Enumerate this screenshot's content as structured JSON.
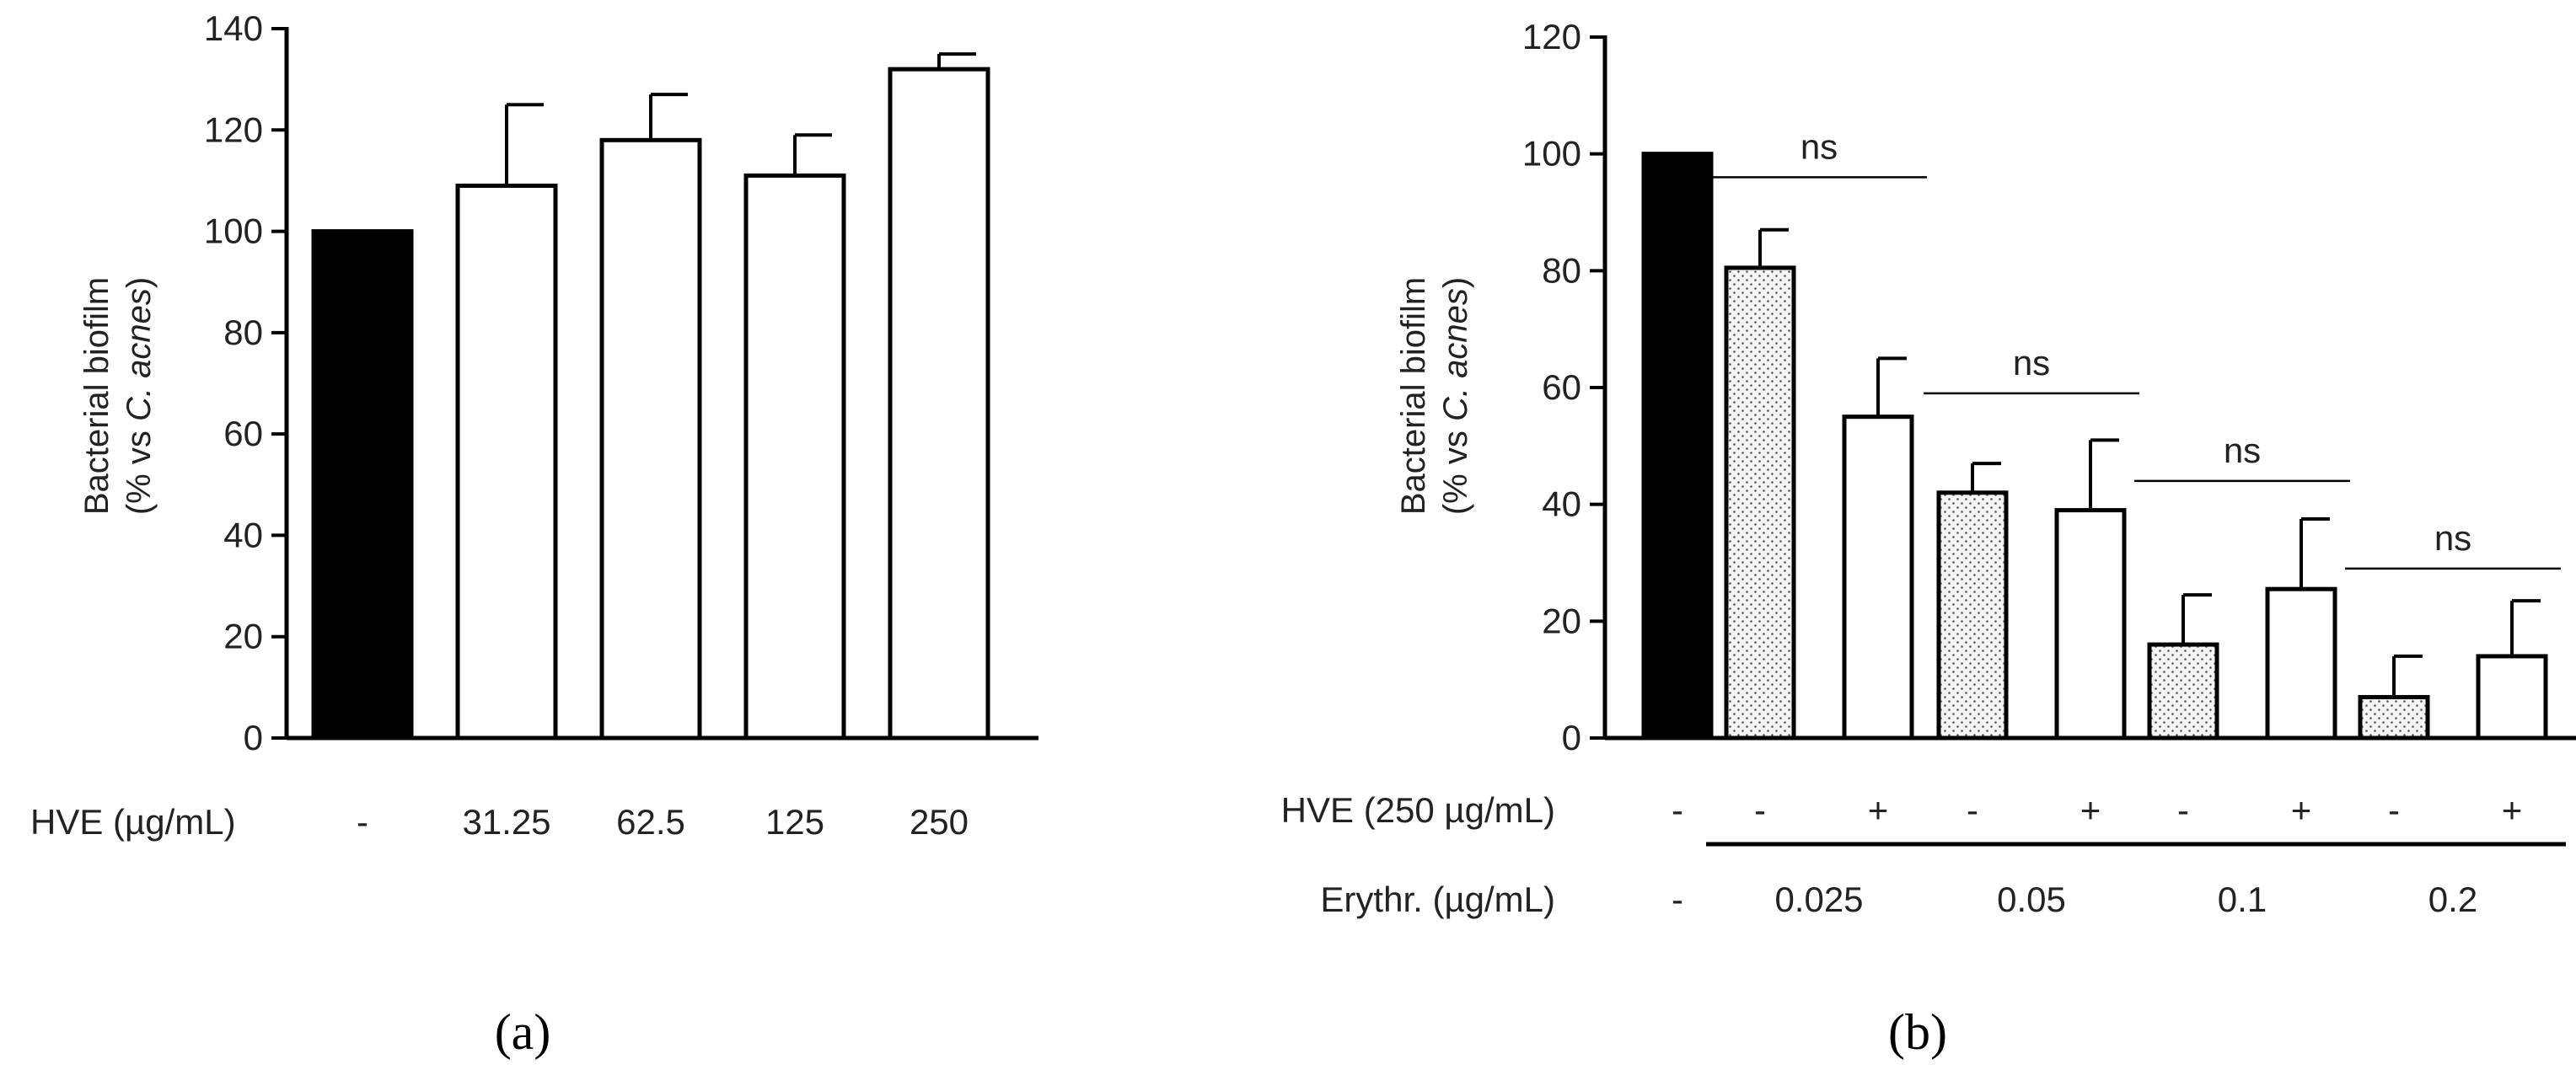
{
  "colors": {
    "control": "#000000",
    "hve_only": "#ffffff",
    "erythromycin_only": "#ececec",
    "axis": "#000000"
  },
  "panels": [
    {
      "panel_label": "(a)",
      "ylabel_line1": "Bacterial biofilm",
      "ylabel_line2_prefix": "(% vs ",
      "ylabel_line2_italic": "C. acnes",
      "ylabel_line2_suffix": ")",
      "row1_label": "HVE (µg/mL)"
    },
    {
      "panel_label": "(b)",
      "ylabel_line1": "Bacterial biofilm",
      "ylabel_line2_prefix": "(% vs ",
      "ylabel_line2_italic": "C. acnes",
      "ylabel_line2_suffix": ")",
      "row1_label": "HVE (250 µg/mL)",
      "row2_label": "Erythr. (µg/mL)"
    }
  ],
  "chart_data": [
    {
      "type": "bar",
      "title": "",
      "xlabel": "HVE (µg/mL)",
      "ylabel": "Bacterial biofilm (% vs C. acnes)",
      "ylim": [
        0,
        140
      ],
      "yticks": [
        0,
        20,
        40,
        60,
        80,
        100,
        120,
        140
      ],
      "categories": [
        "-",
        "31.25",
        "62.5",
        "125",
        "250"
      ],
      "values": [
        100,
        109,
        118,
        111,
        132
      ],
      "errors": [
        0,
        16,
        9,
        8,
        3
      ],
      "fills": [
        "control",
        "hve_only",
        "hve_only",
        "hve_only",
        "hve_only"
      ]
    },
    {
      "type": "bar",
      "title": "",
      "xlabel": "Erythr. (µg/mL)",
      "ylabel": "Bacterial biofilm (% vs C. acnes)",
      "ylim": [
        0,
        120
      ],
      "yticks": [
        0,
        20,
        40,
        60,
        80,
        100,
        120
      ],
      "hve_row": [
        "-",
        "-",
        "+",
        "-",
        "+",
        "-",
        "+",
        "-",
        "+"
      ],
      "erythr_groups": [
        {
          "label": "-",
          "bars": [
            0
          ]
        },
        {
          "label": "0.025",
          "bars": [
            1,
            2
          ]
        },
        {
          "label": "0.05",
          "bars": [
            3,
            4
          ]
        },
        {
          "label": "0.1",
          "bars": [
            5,
            6
          ]
        },
        {
          "label": "0.2",
          "bars": [
            7,
            8
          ]
        }
      ],
      "values": [
        100,
        80.5,
        55,
        42,
        39,
        16,
        25.5,
        7,
        14
      ],
      "errors": [
        0,
        6.5,
        10,
        5,
        12,
        8.5,
        12,
        7,
        9.5
      ],
      "fills": [
        "control",
        "erythromycin_only",
        "hve_only",
        "erythromycin_only",
        "hve_only",
        "erythromycin_only",
        "hve_only",
        "erythromycin_only",
        "hve_only"
      ],
      "annotations": [
        {
          "text": "ns",
          "bars": [
            1,
            2
          ],
          "level": 96
        },
        {
          "text": "ns",
          "bars": [
            3,
            4
          ],
          "level": 59
        },
        {
          "text": "ns",
          "bars": [
            5,
            6
          ],
          "level": 44
        },
        {
          "text": "ns",
          "bars": [
            7,
            8
          ],
          "level": 29
        }
      ]
    }
  ]
}
